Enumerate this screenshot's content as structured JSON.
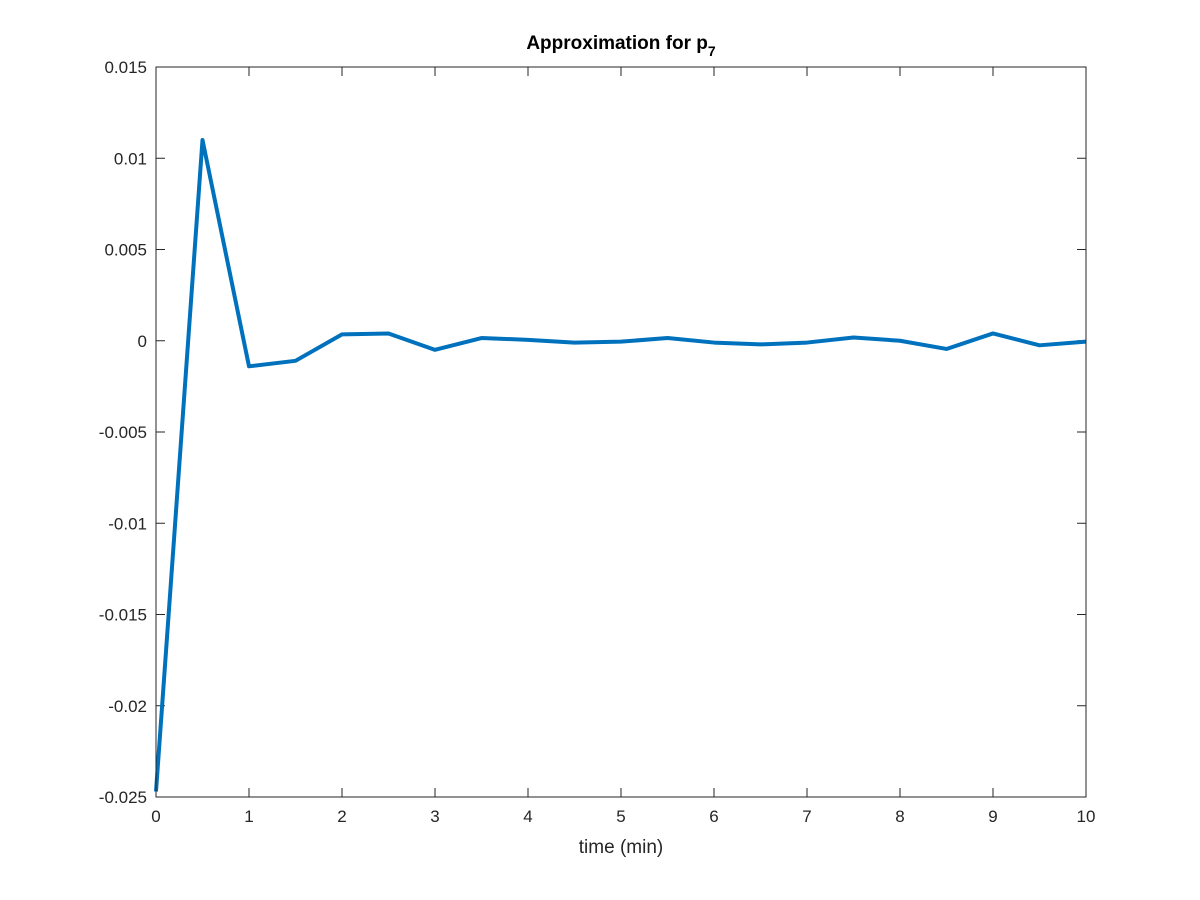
{
  "chart_data": {
    "type": "line",
    "title": "Approximation for p",
    "title_subscript": "7",
    "xlabel": "time (min)",
    "ylabel": "",
    "xlim": [
      0,
      10
    ],
    "ylim": [
      -0.025,
      0.015
    ],
    "x_ticks": [
      0,
      1,
      2,
      3,
      4,
      5,
      6,
      7,
      8,
      9,
      10
    ],
    "x_tick_labels": [
      "0",
      "1",
      "2",
      "3",
      "4",
      "5",
      "6",
      "7",
      "8",
      "9",
      "10"
    ],
    "y_ticks": [
      -0.025,
      -0.02,
      -0.015,
      -0.01,
      -0.005,
      0,
      0.005,
      0.01,
      0.015
    ],
    "y_tick_labels": [
      "-0.025",
      "-0.02",
      "-0.015",
      "-0.01",
      "-0.005",
      "0",
      "0.005",
      "0.01",
      "0.015"
    ],
    "grid": false,
    "line_color": "#0072BD",
    "series": [
      {
        "x": [
          0,
          0.5,
          1,
          1.5,
          2,
          2.5,
          3,
          3.5,
          4,
          4.5,
          5,
          5.5,
          6,
          6.5,
          7,
          7.5,
          8,
          8.5,
          9,
          9.5,
          10
        ],
        "values": [
          -0.0247,
          0.011,
          -0.0014,
          -0.0011,
          0.00035,
          0.0004,
          -0.0005,
          0.00015,
          5e-05,
          -0.0001,
          -5e-05,
          0.00015,
          -0.0001,
          -0.0002,
          -0.0001,
          0.00018,
          0.0,
          -0.00045,
          0.0004,
          -0.00025,
          -5e-05
        ]
      }
    ]
  }
}
